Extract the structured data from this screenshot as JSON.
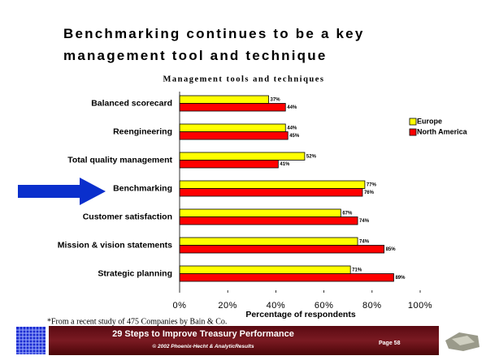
{
  "chart_data": {
    "type": "bar",
    "orientation": "horizontal",
    "title": "Benchmarking continues to be a key management tool and technique",
    "subtitle": "Management tools and techniques",
    "categories": [
      "Balanced scorecard",
      "Reengineering",
      "Total quality management",
      "Benchmarking",
      "Customer satisfaction",
      "Mission & vision statements",
      "Strategic planning"
    ],
    "series": [
      {
        "name": "Europe",
        "color": "#ffff00",
        "values": [
          37,
          44,
          52,
          77,
          67,
          74,
          71
        ],
        "value_labels": [
          "37%",
          "44%",
          "52%",
          "77%",
          "67%",
          "74%",
          "71%"
        ]
      },
      {
        "name": "North America",
        "color": "#ff0000",
        "values": [
          44,
          45,
          41,
          76,
          74,
          85,
          89
        ],
        "value_labels": [
          "44%",
          "45%",
          "41%",
          "76%",
          "74%",
          "85%",
          "89%"
        ]
      }
    ],
    "xlabel": "Percentage of respondents",
    "xlim": [
      0,
      100
    ],
    "xticks": [
      {
        "value": 0,
        "label": "0%"
      },
      {
        "value": 20,
        "label": "20%"
      },
      {
        "value": 40,
        "label": "40%"
      },
      {
        "value": 60,
        "label": "60%"
      },
      {
        "value": 80,
        "label": "80%"
      },
      {
        "value": 100,
        "label": "100%"
      }
    ],
    "grid": false,
    "legend": "right",
    "footnote": "*From a recent study of 475 Companies by Bain & Co."
  },
  "footer": {
    "title": "29 Steps to Improve Treasury Performance",
    "copyright": "© 2002 Phoenix-Hecht & AnalyticResults",
    "page": "Page 58"
  }
}
